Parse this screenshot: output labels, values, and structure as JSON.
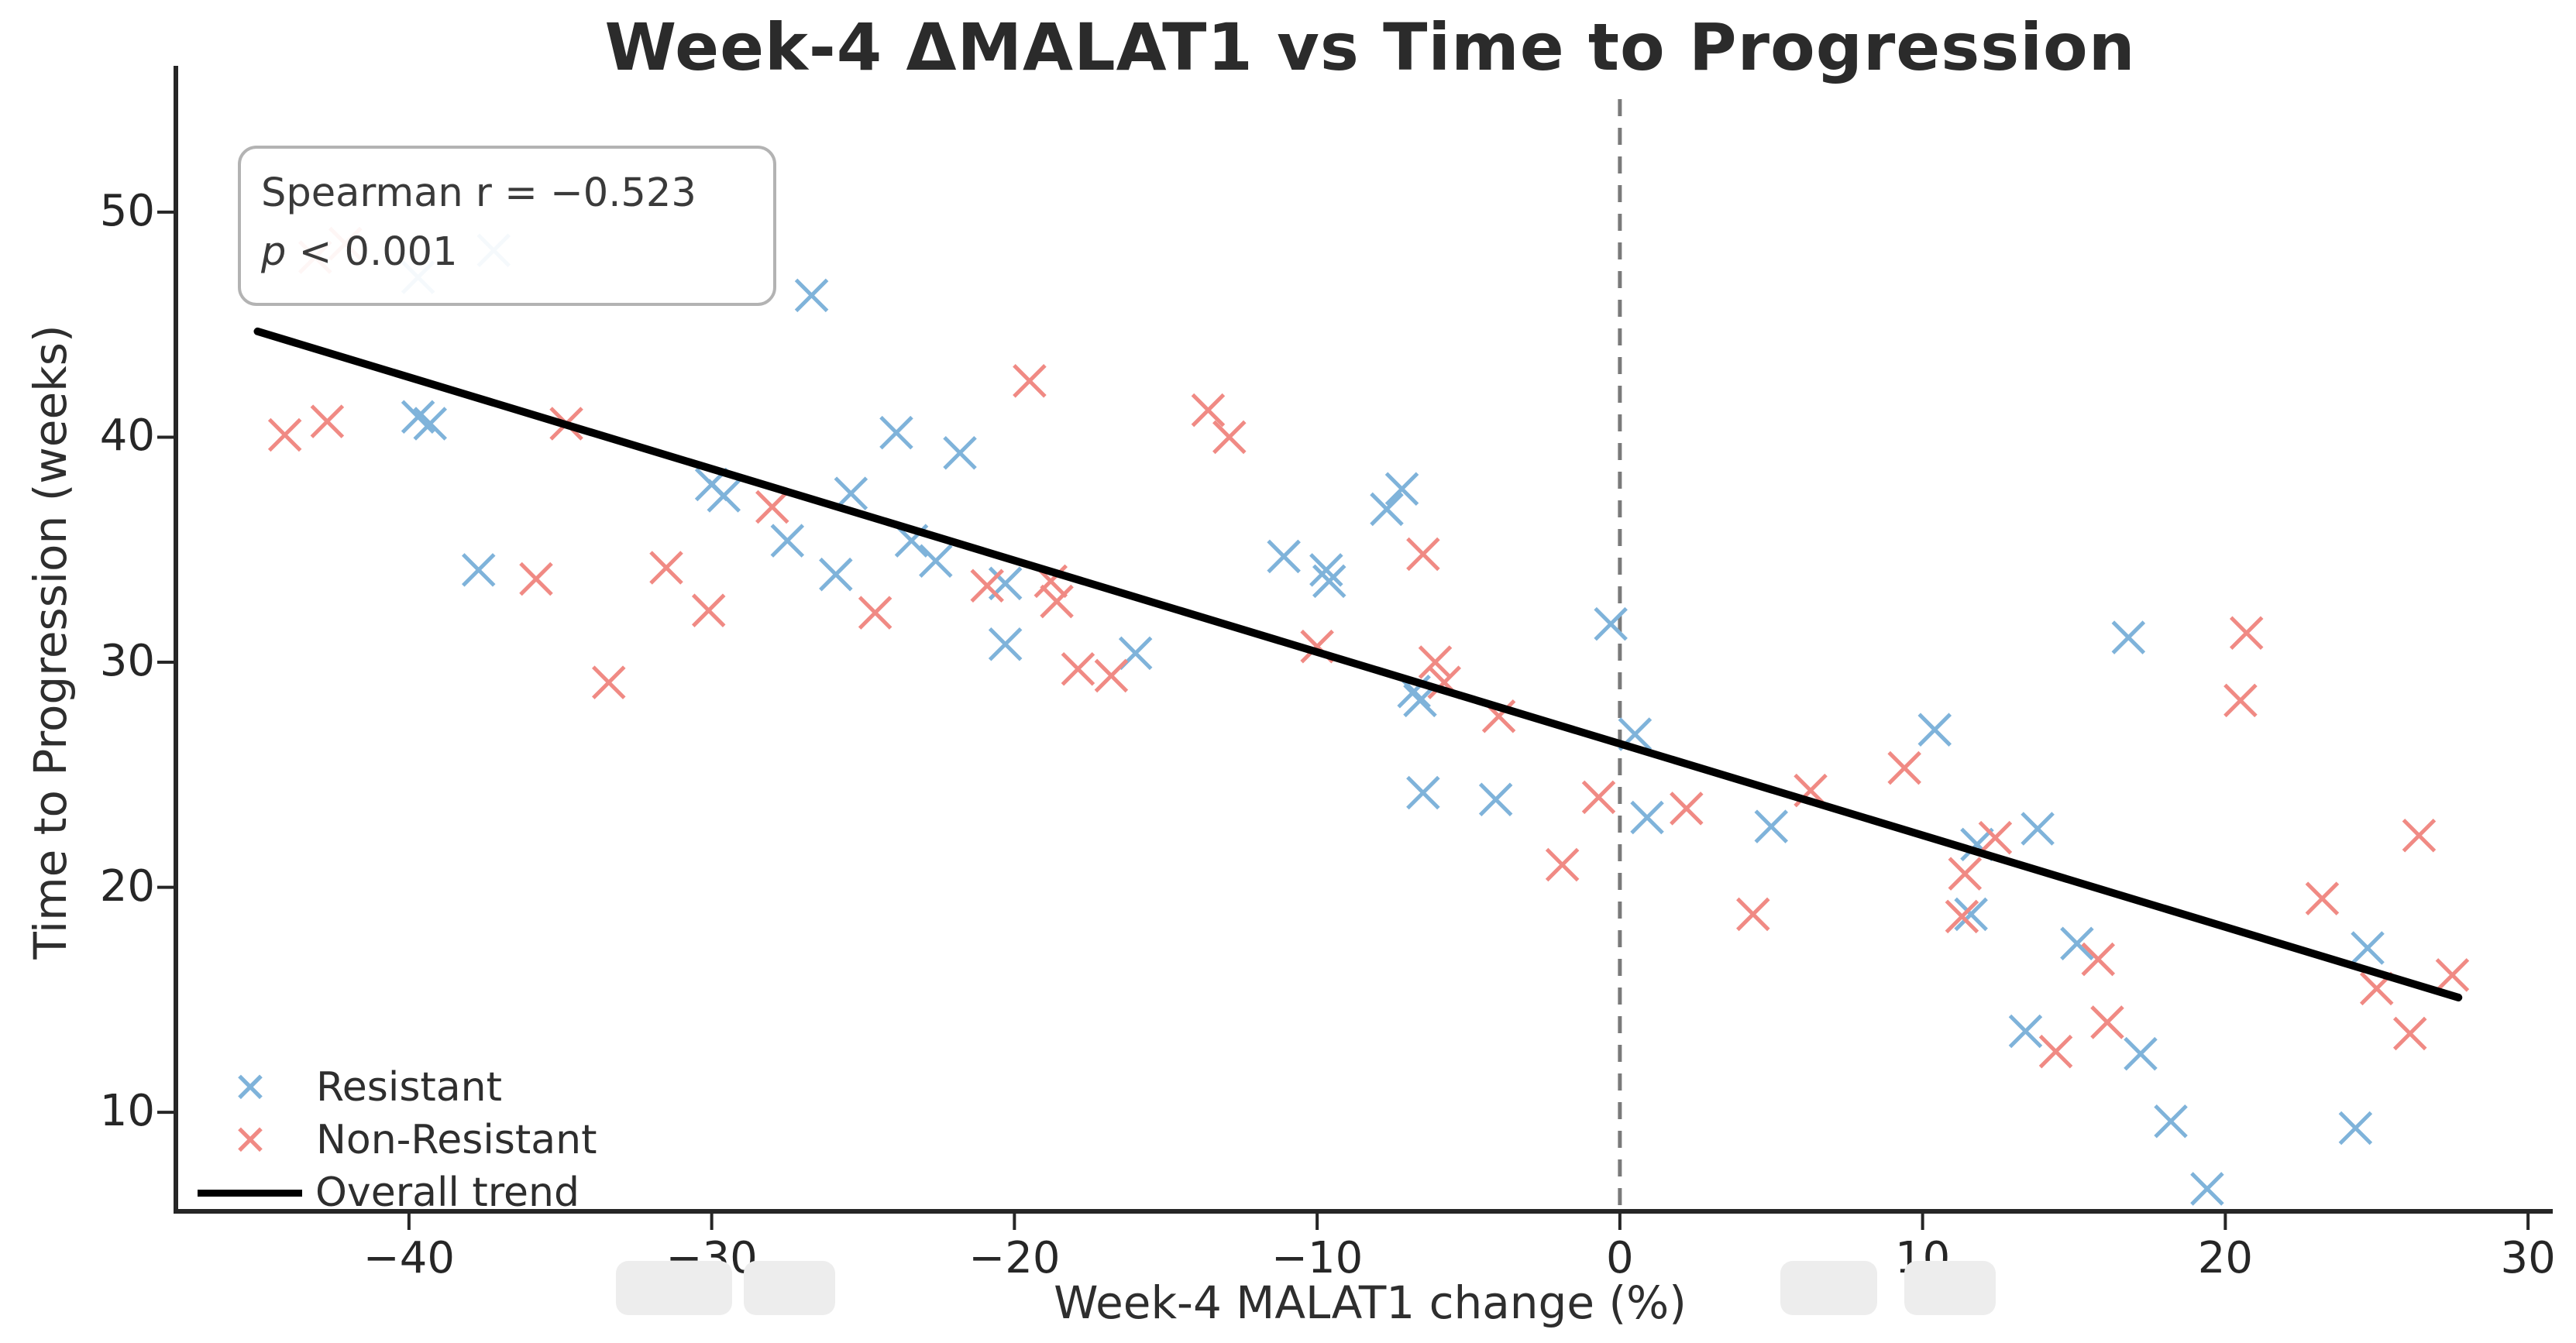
{
  "chart_data": {
    "type": "scatter",
    "title": "Week-4 ΔMALAT1 vs Time to Progression",
    "xlabel": "Week-4 MALAT1 change (%)",
    "ylabel": "Time to Progression (weeks)",
    "xlim": [
      -47.7,
      31.2
    ],
    "ylim": [
      5.6,
      56.5
    ],
    "x_ticks": [
      -40,
      -30,
      -20,
      -10,
      0,
      10,
      20,
      30
    ],
    "y_ticks": [
      10,
      20,
      30,
      40,
      50
    ],
    "grid": false,
    "legend_position": "lower-left",
    "annotation": {
      "line1": "Spearman r = −0.523",
      "line2_prefix": "p",
      "line2_rest": " < 0.001"
    },
    "reference_line": {
      "type": "vertical",
      "x": 0,
      "style": "dashed"
    },
    "series": [
      {
        "name": "Resistant",
        "marker": "x",
        "color": "#7fb3da",
        "points": [
          [
            -37.2,
            48.3
          ],
          [
            -39.7,
            47.1
          ],
          [
            -26.7,
            46.3
          ],
          [
            -39.7,
            40.9
          ],
          [
            -39.3,
            40.6
          ],
          [
            -23.9,
            40.2
          ],
          [
            -21.8,
            39.3
          ],
          [
            -30.0,
            37.9
          ],
          [
            -29.6,
            37.4
          ],
          [
            -25.4,
            37.5
          ],
          [
            -7.2,
            37.7
          ],
          [
            -7.7,
            36.8
          ],
          [
            -27.5,
            35.4
          ],
          [
            -23.4,
            35.4
          ],
          [
            -22.6,
            34.5
          ],
          [
            -25.9,
            33.9
          ],
          [
            -20.3,
            33.5
          ],
          [
            -11.1,
            34.7
          ],
          [
            -9.7,
            34.1
          ],
          [
            -9.6,
            33.6
          ],
          [
            -37.7,
            34.1
          ],
          [
            -20.3,
            30.8
          ],
          [
            -16.0,
            30.4
          ],
          [
            -6.8,
            28.7
          ],
          [
            -6.6,
            28.3
          ],
          [
            -6.5,
            24.2
          ],
          [
            -4.1,
            23.9
          ],
          [
            -0.3,
            31.7
          ],
          [
            0.5,
            26.8
          ],
          [
            0.9,
            23.1
          ],
          [
            5.0,
            22.7
          ],
          [
            16.8,
            31.1
          ],
          [
            10.4,
            27.0
          ],
          [
            11.8,
            21.9
          ],
          [
            13.8,
            22.6
          ],
          [
            11.6,
            18.8
          ],
          [
            15.1,
            17.5
          ],
          [
            13.4,
            13.6
          ],
          [
            17.2,
            12.6
          ],
          [
            18.2,
            9.6
          ],
          [
            19.4,
            6.6
          ],
          [
            24.7,
            17.3
          ],
          [
            24.3,
            9.3
          ]
        ]
      },
      {
        "name": "Non-Resistant",
        "marker": "x",
        "color": "#f08a84",
        "points": [
          [
            -43.1,
            48.0
          ],
          [
            -42.1,
            48.6
          ],
          [
            -44.1,
            40.1
          ],
          [
            -42.7,
            40.7
          ],
          [
            -34.8,
            40.6
          ],
          [
            -19.5,
            42.5
          ],
          [
            -13.6,
            41.2
          ],
          [
            -12.9,
            40.0
          ],
          [
            -28.0,
            36.9
          ],
          [
            -31.5,
            34.2
          ],
          [
            -30.1,
            32.3
          ],
          [
            -24.6,
            32.2
          ],
          [
            -20.9,
            33.4
          ],
          [
            -18.8,
            33.6
          ],
          [
            -18.6,
            32.7
          ],
          [
            -35.8,
            33.7
          ],
          [
            -33.4,
            29.1
          ],
          [
            -17.9,
            29.7
          ],
          [
            -16.8,
            29.4
          ],
          [
            -6.5,
            34.8
          ],
          [
            -10.0,
            30.7
          ],
          [
            -6.1,
            30.0
          ],
          [
            -5.8,
            29.1
          ],
          [
            -4.0,
            27.6
          ],
          [
            -0.7,
            24.0
          ],
          [
            2.2,
            23.5
          ],
          [
            -1.9,
            21.0
          ],
          [
            4.4,
            18.8
          ],
          [
            6.3,
            24.3
          ],
          [
            9.4,
            25.3
          ],
          [
            12.4,
            22.2
          ],
          [
            11.4,
            20.6
          ],
          [
            11.3,
            18.7
          ],
          [
            15.8,
            16.8
          ],
          [
            16.1,
            14.0
          ],
          [
            14.4,
            12.7
          ],
          [
            20.7,
            31.3
          ],
          [
            20.5,
            28.3
          ],
          [
            26.4,
            22.3
          ],
          [
            23.2,
            19.5
          ],
          [
            25.0,
            15.5
          ],
          [
            27.5,
            16.1
          ],
          [
            26.1,
            13.5
          ]
        ]
      },
      {
        "name": "Overall trend",
        "type": "line",
        "color": "#000000",
        "points": [
          [
            -45.0,
            44.7
          ],
          [
            27.7,
            15.1
          ]
        ]
      }
    ]
  },
  "colors": {
    "resistant": "#7fb3da",
    "non_resistant": "#f08a84",
    "trend": "#000000",
    "reference_line": "#7a7a7a",
    "axis": "#262626",
    "annotation_border": "#b3b3b3"
  }
}
